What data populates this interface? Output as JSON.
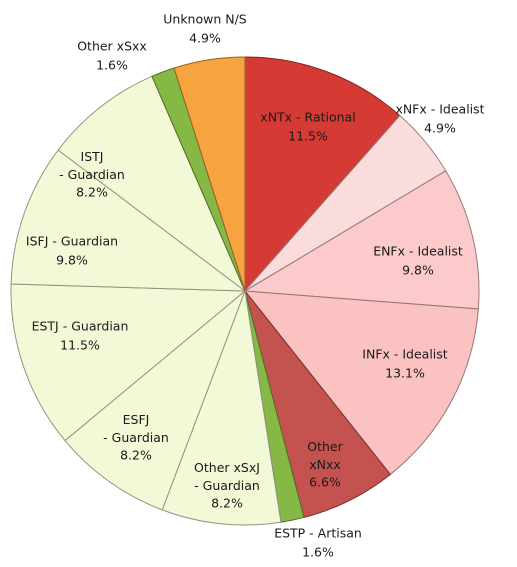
{
  "chart_data": {
    "type": "pie",
    "categories": [
      "xNTx - Rational",
      "xNFx - Idealist",
      "ENFx - Idealist",
      "INFx - Idealist",
      "Other xNxx",
      "ESTP - Artisan",
      "Other xSxJ - Guardian",
      "ESFJ - Guardian",
      "ESTJ - Guardian",
      "ISFJ - Guardian",
      "ISTJ - Guardian",
      "Other xSxx",
      "Unknown N/S"
    ],
    "values": [
      11.5,
      4.9,
      9.8,
      13.1,
      6.6,
      1.6,
      8.2,
      8.2,
      11.5,
      9.8,
      8.2,
      1.6,
      4.9
    ],
    "value_labels": [
      "11.5%",
      "4.9%",
      "9.8%",
      "13.1%",
      "6.6%",
      "1.6%",
      "8.2%",
      "8.2%",
      "11.5%",
      "9.8%",
      "8.2%",
      "1.6%",
      "4.9%"
    ],
    "colors": [
      "#d63a34",
      "#fbdcdc",
      "#fccaca",
      "#fbc2c2",
      "#c4524e",
      "#86b846",
      "#f2f9d6",
      "#f2f9d6",
      "#f2f9d6",
      "#f2f9d6",
      "#f2f9d6",
      "#86b846",
      "#f7a33f"
    ]
  }
}
